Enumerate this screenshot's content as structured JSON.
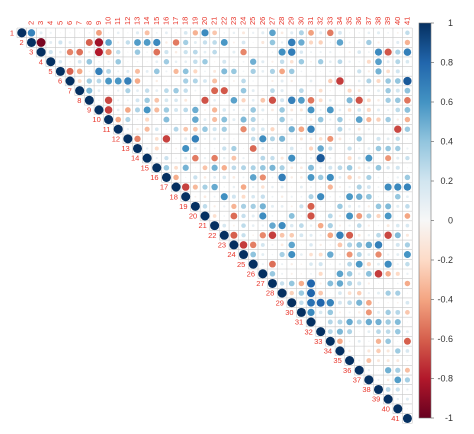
{
  "chart_data": {
    "type": "heatmap",
    "variables": [
      "1",
      "2",
      "3",
      "4",
      "5",
      "6",
      "7",
      "8",
      "9",
      "10",
      "11",
      "12",
      "13",
      "14",
      "15",
      "16",
      "17",
      "18",
      "19",
      "20",
      "21",
      "22",
      "23",
      "24",
      "25",
      "26",
      "27",
      "28",
      "29",
      "30",
      "31",
      "32",
      "33",
      "34",
      "35",
      "36",
      "37",
      "38",
      "39",
      "40",
      "41"
    ],
    "matrix_type": "upper triangle correlation plot (circles)",
    "colorbar": {
      "min": -1,
      "max": 1,
      "ticks": [
        "1",
        "0.8",
        "0.6",
        "0.4",
        "0.2",
        "0",
        "-0.2",
        "-0.4",
        "-0.6",
        "-0.8",
        "-1"
      ],
      "tick_values": [
        1,
        0.8,
        0.6,
        0.4,
        0.2,
        0,
        -0.2,
        -0.4,
        -0.6,
        -0.8,
        -1
      ],
      "high_color": "#053061",
      "mid_color": "#f7f7f7",
      "low_color": "#67001f"
    },
    "label_color": "#e8352a",
    "grid": true,
    "notable_cells": [
      {
        "row": "2",
        "col": "3",
        "value": -0.95
      },
      {
        "row": "2",
        "col": "9",
        "value": -0.85
      },
      {
        "row": "2",
        "col": "8",
        "value": -0.6
      },
      {
        "row": "3",
        "col": "9",
        "value": -0.8
      },
      {
        "row": "3",
        "col": "6",
        "value": -0.5
      },
      {
        "row": "3",
        "col": "7",
        "value": -0.55
      },
      {
        "row": "2",
        "col": "29",
        "value": 0.7
      },
      {
        "row": "3",
        "col": "29",
        "value": 0.7
      },
      {
        "row": "2",
        "col": "30",
        "value": 0.5
      },
      {
        "row": "6",
        "col": "34",
        "value": -0.7
      },
      {
        "row": "6",
        "col": "41",
        "value": 0.85
      },
      {
        "row": "14",
        "col": "32",
        "value": 0.85
      },
      {
        "row": "22",
        "col": "23",
        "value": -0.6
      },
      {
        "row": "23",
        "col": "24",
        "value": -0.7
      },
      {
        "row": "26",
        "col": "38",
        "value": -0.7
      },
      {
        "row": "27",
        "col": "31",
        "value": 0.8
      },
      {
        "row": "28",
        "col": "31",
        "value": 0.8
      },
      {
        "row": "29",
        "col": "31",
        "value": 0.75
      },
      {
        "row": "29",
        "col": "32",
        "value": 0.8
      },
      {
        "row": "33",
        "col": "41",
        "value": -0.6
      }
    ]
  }
}
